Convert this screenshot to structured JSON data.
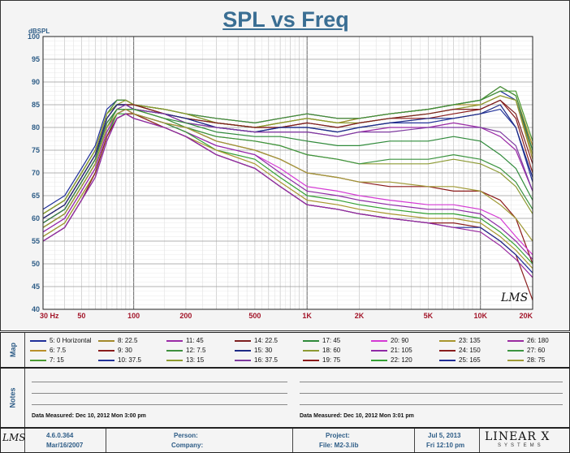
{
  "chart_data": {
    "type": "line",
    "title": "SPL vs Freq",
    "ylabel": "dBSPL",
    "xlabel": "",
    "x_scale": "log",
    "xlim": [
      30,
      20000
    ],
    "ylim": [
      40,
      100
    ],
    "y_ticks": [
      40,
      45,
      50,
      55,
      60,
      65,
      70,
      75,
      80,
      85,
      90,
      95,
      100
    ],
    "x_ticks": [
      {
        "value": 30,
        "label": "30  Hz"
      },
      {
        "value": 50,
        "label": "50"
      },
      {
        "value": 100,
        "label": "100"
      },
      {
        "value": 200,
        "label": "200"
      },
      {
        "value": 500,
        "label": "500"
      },
      {
        "value": 1000,
        "label": "1K"
      },
      {
        "value": 2000,
        "label": "2K"
      },
      {
        "value": 5000,
        "label": "5K"
      },
      {
        "value": 10000,
        "label": "10K"
      },
      {
        "value": 20000,
        "label": "20K"
      }
    ],
    "grid": true,
    "legend_position": "bottom",
    "freqs": [
      30,
      40,
      50,
      60,
      70,
      80,
      90,
      100,
      150,
      200,
      300,
      500,
      700,
      1000,
      1500,
      2000,
      3000,
      5000,
      7000,
      10000,
      13000,
      16000,
      20000
    ],
    "series": [
      {
        "name": "5: 0 Horizontal",
        "color": "#1f2f99",
        "values": [
          62,
          65,
          71,
          76,
          84,
          86,
          86,
          85,
          84,
          83,
          82,
          81,
          82,
          83,
          82,
          82,
          83,
          84,
          85,
          86,
          88,
          86,
          75
        ]
      },
      {
        "name": "6: 7.5",
        "color": "#b98f2a",
        "values": [
          61,
          64,
          70,
          75,
          83,
          86,
          86,
          85,
          84,
          83,
          82,
          81,
          82,
          83,
          82,
          82,
          83,
          84,
          85,
          86,
          89,
          87,
          76
        ]
      },
      {
        "name": "7: 15",
        "color": "#4a9a32",
        "values": [
          61,
          64,
          70,
          75,
          83,
          85,
          85,
          85,
          84,
          83,
          81,
          80,
          81,
          82,
          81,
          82,
          83,
          84,
          85,
          86,
          88,
          88,
          77
        ]
      },
      {
        "name": "8: 22.5",
        "color": "#a38a2c",
        "values": [
          60,
          63,
          69,
          74,
          82,
          85,
          85,
          85,
          83,
          82,
          81,
          80,
          81,
          82,
          81,
          82,
          83,
          84,
          85,
          85,
          87,
          86,
          73
        ]
      },
      {
        "name": "9: 30",
        "color": "#8a1c1c",
        "values": [
          60,
          63,
          69,
          74,
          82,
          85,
          85,
          85,
          83,
          82,
          81,
          80,
          80,
          81,
          80,
          81,
          82,
          82,
          83,
          84,
          86,
          82,
          70
        ]
      },
      {
        "name": "10: 37.5",
        "color": "#23339a",
        "values": [
          59,
          62,
          68,
          73,
          82,
          85,
          85,
          84,
          83,
          82,
          80,
          79,
          80,
          80,
          79,
          80,
          81,
          81,
          82,
          83,
          84,
          80,
          68
        ]
      },
      {
        "name": "11: 45",
        "color": "#9a2aa6",
        "values": [
          59,
          62,
          68,
          73,
          81,
          84,
          85,
          84,
          83,
          81,
          80,
          79,
          79,
          79,
          78,
          79,
          80,
          80,
          81,
          80,
          78,
          75,
          66
        ]
      },
      {
        "name": "12: 7.5",
        "color": "#3e8f3e",
        "values": [
          61,
          64,
          70,
          75,
          83,
          86,
          86,
          85,
          84,
          83,
          82,
          81,
          82,
          83,
          82,
          82,
          83,
          84,
          85,
          86,
          89,
          87,
          75
        ]
      },
      {
        "name": "13: 15",
        "color": "#8f9a2e",
        "values": [
          61,
          64,
          70,
          75,
          83,
          85,
          86,
          85,
          84,
          83,
          81,
          80,
          81,
          82,
          81,
          81,
          82,
          83,
          84,
          85,
          87,
          86,
          74
        ]
      },
      {
        "name": "14: 22.5",
        "color": "#7d1f1f",
        "values": [
          60,
          63,
          69,
          74,
          82,
          85,
          85,
          85,
          83,
          82,
          81,
          80,
          80,
          81,
          80,
          81,
          82,
          83,
          84,
          84,
          86,
          83,
          72
        ]
      },
      {
        "name": "15: 30",
        "color": "#1d2a86",
        "values": [
          60,
          63,
          69,
          74,
          82,
          85,
          85,
          84,
          83,
          82,
          80,
          79,
          80,
          80,
          79,
          80,
          81,
          82,
          82,
          83,
          85,
          80,
          69
        ]
      },
      {
        "name": "16: 37.5",
        "color": "#7e3aa0",
        "values": [
          59,
          62,
          68,
          73,
          81,
          84,
          85,
          84,
          83,
          81,
          80,
          79,
          79,
          79,
          78,
          79,
          79,
          80,
          80,
          80,
          79,
          76,
          66
        ]
      },
      {
        "name": "17: 45",
        "color": "#2f8a3a",
        "values": [
          59,
          62,
          68,
          73,
          81,
          84,
          84,
          84,
          82,
          81,
          79,
          78,
          78,
          77,
          76,
          76,
          77,
          77,
          78,
          77,
          74,
          71,
          64
        ]
      },
      {
        "name": "18: 60",
        "color": "#8d9a34",
        "values": [
          58,
          61,
          67,
          72,
          80,
          84,
          84,
          84,
          82,
          80,
          78,
          77,
          76,
          74,
          73,
          72,
          72,
          72,
          73,
          72,
          70,
          67,
          61
        ]
      },
      {
        "name": "19: 75",
        "color": "#8b1a1a",
        "values": [
          58,
          61,
          67,
          72,
          80,
          83,
          84,
          83,
          81,
          80,
          77,
          75,
          73,
          70,
          69,
          68,
          67,
          67,
          66,
          66,
          64,
          60,
          50
        ]
      },
      {
        "name": "20: 90",
        "color": "#d43ad4",
        "values": [
          57,
          60,
          66,
          71,
          79,
          83,
          84,
          83,
          81,
          79,
          76,
          74,
          71,
          67,
          66,
          65,
          64,
          63,
          63,
          62,
          60,
          56,
          52
        ]
      },
      {
        "name": "21: 105",
        "color": "#8f2aa6",
        "values": [
          57,
          60,
          66,
          71,
          79,
          83,
          84,
          83,
          81,
          79,
          76,
          74,
          70,
          66,
          65,
          64,
          63,
          62,
          62,
          61,
          58,
          55,
          51
        ]
      },
      {
        "name": "22: 120",
        "color": "#33a033",
        "values": [
          56,
          59,
          65,
          70,
          78,
          83,
          83,
          83,
          81,
          79,
          75,
          73,
          69,
          65,
          64,
          63,
          62,
          61,
          61,
          60,
          57,
          54,
          50
        ]
      },
      {
        "name": "23: 135",
        "color": "#a8962e",
        "values": [
          56,
          59,
          65,
          70,
          78,
          82,
          83,
          83,
          80,
          78,
          75,
          72,
          68,
          64,
          63,
          62,
          61,
          60,
          60,
          59,
          56,
          53,
          49
        ]
      },
      {
        "name": "24: 150",
        "color": "#8a1e1e",
        "values": [
          55,
          58,
          64,
          70,
          78,
          82,
          83,
          83,
          80,
          78,
          74,
          71,
          67,
          63,
          62,
          61,
          60,
          59,
          59,
          58,
          55,
          52,
          42
        ]
      },
      {
        "name": "25: 165",
        "color": "#1f2d96",
        "values": [
          55,
          58,
          64,
          69,
          77,
          82,
          83,
          82,
          80,
          78,
          74,
          71,
          67,
          63,
          62,
          61,
          60,
          59,
          58,
          58,
          55,
          52,
          48
        ]
      },
      {
        "name": "26: 180",
        "color": "#9a2aa0",
        "values": [
          55,
          58,
          64,
          69,
          77,
          82,
          83,
          82,
          80,
          78,
          74,
          71,
          67,
          63,
          62,
          61,
          60,
          59,
          58,
          57,
          54,
          51,
          47
        ]
      },
      {
        "name": "27: 60",
        "color": "#3c9440",
        "values": [
          58,
          61,
          67,
          72,
          80,
          84,
          84,
          84,
          82,
          80,
          78,
          77,
          76,
          74,
          73,
          72,
          73,
          73,
          74,
          73,
          71,
          68,
          62
        ]
      },
      {
        "name": "28: 75",
        "color": "#a09a36",
        "values": [
          58,
          61,
          67,
          72,
          80,
          83,
          84,
          83,
          81,
          80,
          77,
          75,
          73,
          70,
          69,
          68,
          68,
          67,
          67,
          66,
          63,
          60,
          55
        ]
      }
    ]
  },
  "logo": "LMS",
  "map": {
    "label": "Map"
  },
  "notes": {
    "label": "Notes",
    "measured_left": "Data Measured: Dec 10, 2012  Mon  3:00 pm",
    "measured_right": "Data Measured: Dec 10, 2012  Mon  3:01 pm"
  },
  "footer": {
    "version": "4.6.0.364",
    "version_date": "Mar/16/2007",
    "person": "Person:",
    "company": "Company:",
    "project": "Project:",
    "file": "File: M2-3.lib",
    "date": "Jul  5, 2013",
    "time": "Fri 12:10 pm",
    "brand_main": "LINEAR X",
    "brand_sub": "SYSTEMS"
  },
  "colors": {
    "title": "#3a6e93",
    "axis_label": "#2d5c86",
    "tick_label": "#a3162a"
  }
}
